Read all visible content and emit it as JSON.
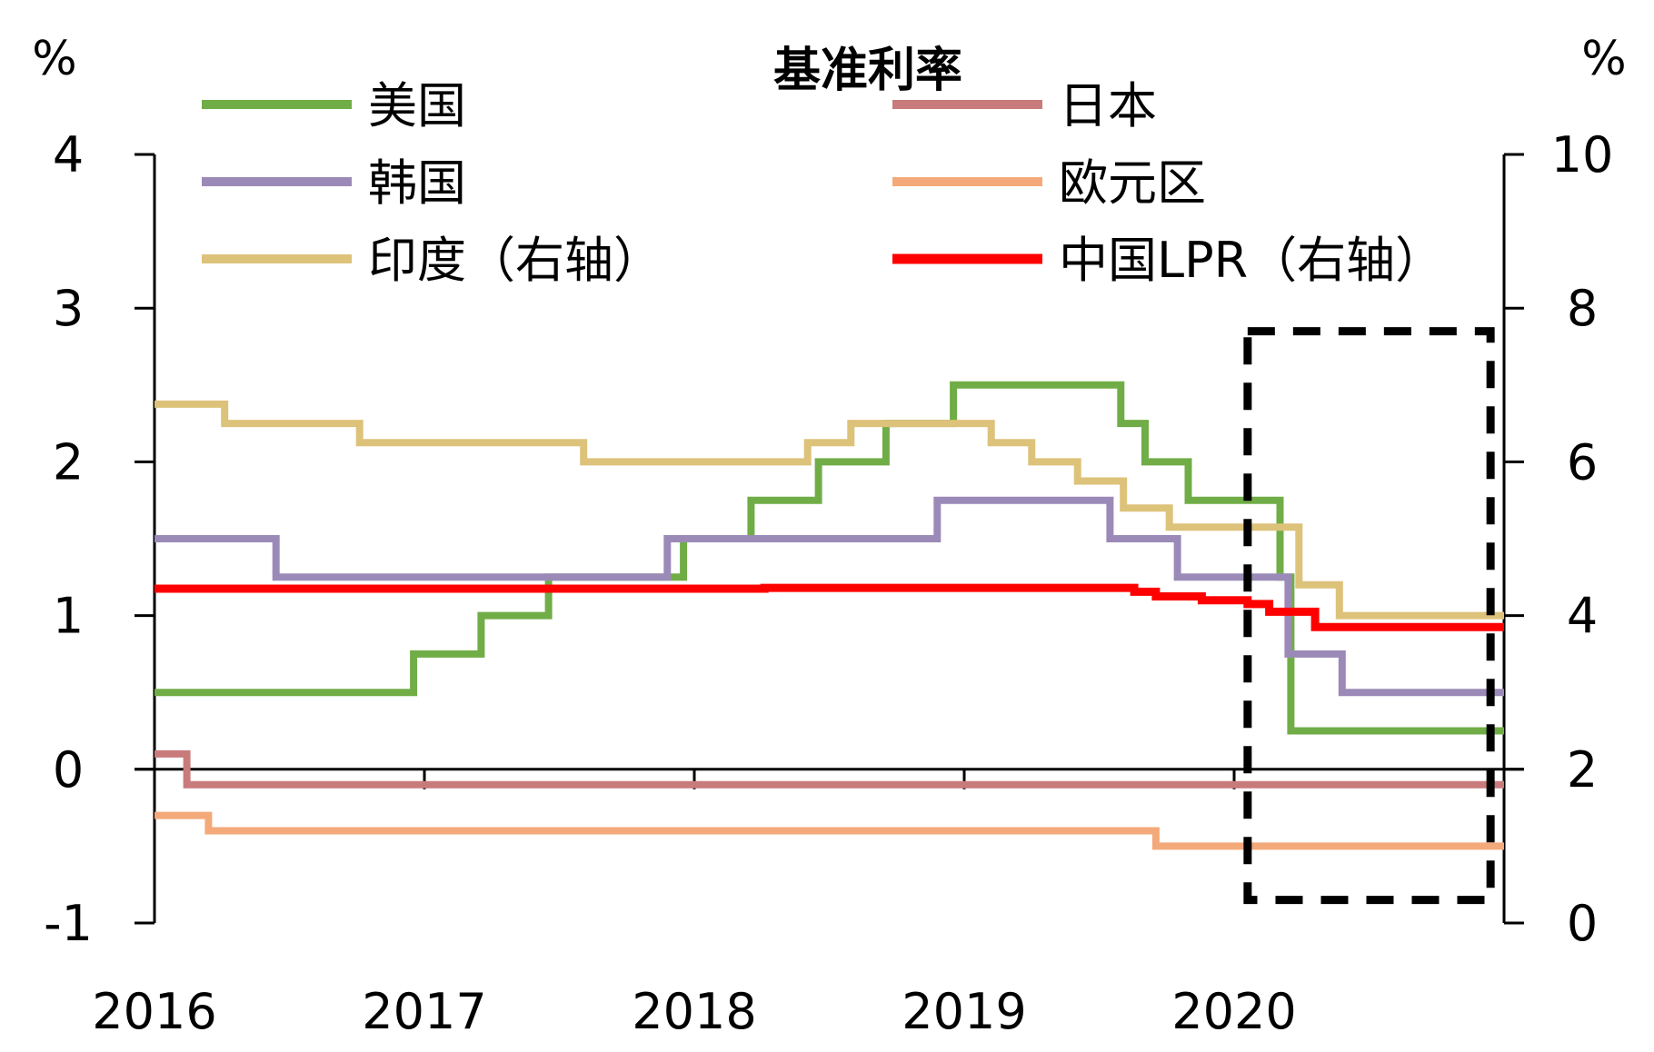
{
  "chart_data": {
    "type": "line",
    "title": "基准利率",
    "left_unit": "%",
    "right_unit": "%",
    "x_range": [
      2016.0,
      2021.0
    ],
    "x_ticks": [
      2016,
      2017,
      2018,
      2019,
      2020
    ],
    "x_tick_labels": [
      "2016",
      "2017",
      "2018",
      "2019",
      "2020"
    ],
    "y_left": {
      "range": [
        -1,
        4
      ],
      "ticks": [
        -1,
        0,
        1,
        2,
        3,
        4
      ],
      "tick_labels": [
        "-1",
        "0",
        "1",
        "2",
        "3",
        "4"
      ]
    },
    "y_right": {
      "range": [
        0,
        10
      ],
      "ticks": [
        0,
        2,
        4,
        6,
        8,
        10
      ],
      "tick_labels": [
        "0",
        "2",
        "4",
        "6",
        "8",
        "10"
      ]
    },
    "legend_position": "top, two columns",
    "highlight_box": {
      "x_range": [
        2020.05,
        2020.95
      ],
      "y_range_left": [
        -0.85,
        2.85
      ],
      "style": "black dashed"
    },
    "series": [
      {
        "name": "美国",
        "axis": "left",
        "color": "#70AD47",
        "x": [
          2016.0,
          2016.96,
          2017.21,
          2017.46,
          2017.96,
          2018.21,
          2018.46,
          2018.71,
          2018.96,
          2019.58,
          2019.67,
          2019.83,
          2020.17,
          2020.21,
          2021.0
        ],
        "y": [
          0.5,
          0.75,
          1.0,
          1.25,
          1.5,
          1.75,
          2.0,
          2.25,
          2.5,
          2.25,
          2.0,
          1.75,
          1.25,
          0.25,
          0.25
        ]
      },
      {
        "name": "日本",
        "axis": "left",
        "color": "#C97B7B",
        "x": [
          2016.0,
          2016.12,
          2021.0
        ],
        "y": [
          0.1,
          -0.1,
          -0.1
        ]
      },
      {
        "name": "韩国",
        "axis": "left",
        "color": "#9B8AB8",
        "x": [
          2016.0,
          2016.45,
          2017.9,
          2018.9,
          2019.54,
          2019.79,
          2020.2,
          2020.4,
          2021.0
        ],
        "y": [
          1.5,
          1.25,
          1.5,
          1.75,
          1.5,
          1.25,
          0.75,
          0.5,
          0.5
        ]
      },
      {
        "name": "欧元区",
        "axis": "left",
        "color": "#F4A97A",
        "x": [
          2016.0,
          2016.2,
          2019.71,
          2021.0
        ],
        "y": [
          -0.3,
          -0.4,
          -0.5,
          -0.5
        ]
      },
      {
        "name": "印度（右轴）",
        "axis": "right",
        "color": "#DDC27A",
        "x": [
          2016.0,
          2016.26,
          2016.76,
          2017.59,
          2018.42,
          2018.58,
          2019.1,
          2019.25,
          2019.42,
          2019.59,
          2019.76,
          2020.24,
          2020.39,
          2021.0
        ],
        "y": [
          6.75,
          6.5,
          6.25,
          6.0,
          6.25,
          6.5,
          6.25,
          6.0,
          5.75,
          5.4,
          5.15,
          4.4,
          4.0,
          4.0
        ]
      },
      {
        "name": "中国LPR（右轴）",
        "axis": "right",
        "color": "#FF0000",
        "x": [
          2016.0,
          2017.0,
          2018.0,
          2018.26,
          2019.0,
          2019.63,
          2019.71,
          2019.88,
          2020.05,
          2020.13,
          2020.3,
          2021.0
        ],
        "y": [
          4.35,
          4.35,
          4.35,
          4.36,
          4.36,
          4.31,
          4.25,
          4.2,
          4.15,
          4.05,
          3.85,
          3.85
        ]
      }
    ]
  }
}
